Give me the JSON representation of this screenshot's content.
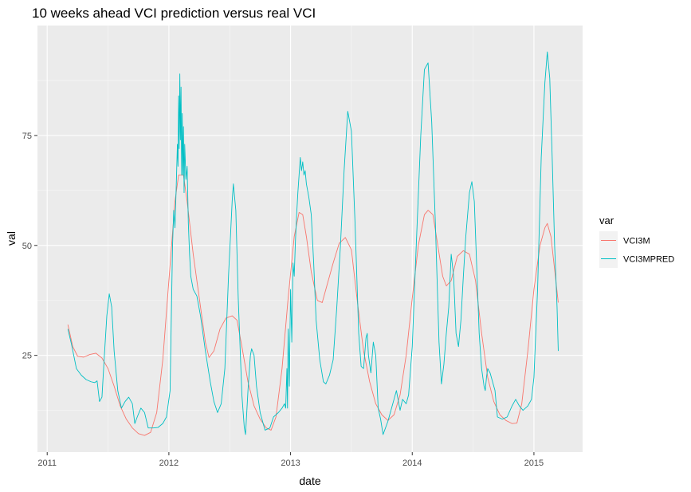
{
  "chart_data": {
    "type": "line",
    "title": "10 weeks ahead VCI prediction versus real VCI",
    "xlabel": "date",
    "ylabel": "val",
    "xlim": [
      2010.92,
      2015.4
    ],
    "ylim": [
      3,
      100
    ],
    "x_ticks": [
      "2011",
      "2012",
      "2013",
      "2014",
      "2015"
    ],
    "y_ticks": [
      25,
      50,
      75
    ],
    "grid": true,
    "legend": {
      "title": "var",
      "position": "right"
    },
    "series": [
      {
        "name": "VCI3M",
        "color": "#F8766D",
        "points": [
          [
            2011.17,
            32
          ],
          [
            2011.21,
            27
          ],
          [
            2011.25,
            24.8
          ],
          [
            2011.3,
            24.6
          ],
          [
            2011.35,
            25.2
          ],
          [
            2011.4,
            25.5
          ],
          [
            2011.45,
            24.4
          ],
          [
            2011.5,
            22
          ],
          [
            2011.55,
            18
          ],
          [
            2011.6,
            13.5
          ],
          [
            2011.65,
            10.5
          ],
          [
            2011.7,
            8.5
          ],
          [
            2011.75,
            7.2
          ],
          [
            2011.8,
            6.8
          ],
          [
            2011.85,
            7.5
          ],
          [
            2011.9,
            12
          ],
          [
            2011.95,
            24
          ],
          [
            2012.0,
            42
          ],
          [
            2012.05,
            60
          ],
          [
            2012.08,
            66
          ],
          [
            2012.12,
            66
          ],
          [
            2012.15,
            60
          ],
          [
            2012.2,
            48
          ],
          [
            2012.25,
            38
          ],
          [
            2012.3,
            28
          ],
          [
            2012.33,
            24.5
          ],
          [
            2012.37,
            26
          ],
          [
            2012.42,
            31
          ],
          [
            2012.47,
            33.5
          ],
          [
            2012.52,
            34
          ],
          [
            2012.56,
            33
          ],
          [
            2012.6,
            27
          ],
          [
            2012.65,
            19
          ],
          [
            2012.7,
            13.5
          ],
          [
            2012.75,
            10.5
          ],
          [
            2012.8,
            8.5
          ],
          [
            2012.84,
            8
          ],
          [
            2012.88,
            11
          ],
          [
            2012.93,
            22
          ],
          [
            2012.98,
            38
          ],
          [
            2013.03,
            52
          ],
          [
            2013.07,
            57.5
          ],
          [
            2013.1,
            57
          ],
          [
            2013.13,
            52
          ],
          [
            2013.17,
            44
          ],
          [
            2013.22,
            37.5
          ],
          [
            2013.26,
            37
          ],
          [
            2013.3,
            41
          ],
          [
            2013.35,
            46
          ],
          [
            2013.4,
            50.5
          ],
          [
            2013.45,
            51.8
          ],
          [
            2013.5,
            49
          ],
          [
            2013.55,
            37
          ],
          [
            2013.6,
            26
          ],
          [
            2013.65,
            19
          ],
          [
            2013.7,
            14
          ],
          [
            2013.75,
            11.5
          ],
          [
            2013.8,
            10.2
          ],
          [
            2013.85,
            11.5
          ],
          [
            2013.9,
            16
          ],
          [
            2013.95,
            25
          ],
          [
            2014.0,
            38
          ],
          [
            2014.05,
            50
          ],
          [
            2014.1,
            57
          ],
          [
            2014.13,
            58
          ],
          [
            2014.17,
            57
          ],
          [
            2014.21,
            50
          ],
          [
            2014.25,
            43
          ],
          [
            2014.28,
            40.8
          ],
          [
            2014.32,
            42
          ],
          [
            2014.37,
            47.5
          ],
          [
            2014.42,
            48.8
          ],
          [
            2014.47,
            48
          ],
          [
            2014.52,
            42
          ],
          [
            2014.57,
            30
          ],
          [
            2014.62,
            20
          ],
          [
            2014.67,
            14.5
          ],
          [
            2014.72,
            11.5
          ],
          [
            2014.77,
            10.2
          ],
          [
            2014.82,
            9.5
          ],
          [
            2014.86,
            9.6
          ],
          [
            2014.9,
            14
          ],
          [
            2014.95,
            26
          ],
          [
            2015.0,
            40
          ],
          [
            2015.05,
            50
          ],
          [
            2015.09,
            54
          ],
          [
            2015.11,
            55
          ],
          [
            2015.14,
            52
          ],
          [
            2015.18,
            42
          ],
          [
            2015.2,
            37
          ]
        ]
      },
      {
        "name": "VCI3MPRED",
        "color": "#00BFC4",
        "points": [
          [
            2011.17,
            31
          ],
          [
            2011.2,
            27.5
          ],
          [
            2011.24,
            22
          ],
          [
            2011.28,
            20.5
          ],
          [
            2011.32,
            19.5
          ],
          [
            2011.36,
            19
          ],
          [
            2011.39,
            18.8
          ],
          [
            2011.41,
            19.2
          ],
          [
            2011.43,
            14.5
          ],
          [
            2011.45,
            15.5
          ],
          [
            2011.47,
            25
          ],
          [
            2011.49,
            34
          ],
          [
            2011.51,
            39
          ],
          [
            2011.53,
            36
          ],
          [
            2011.55,
            26
          ],
          [
            2011.58,
            17
          ],
          [
            2011.61,
            13
          ],
          [
            2011.64,
            14.5
          ],
          [
            2011.67,
            15.5
          ],
          [
            2011.7,
            14
          ],
          [
            2011.72,
            9.5
          ],
          [
            2011.74,
            11
          ],
          [
            2011.77,
            13
          ],
          [
            2011.8,
            12
          ],
          [
            2011.83,
            8.5
          ],
          [
            2011.87,
            8.5
          ],
          [
            2011.91,
            8.6
          ],
          [
            2011.95,
            9.5
          ],
          [
            2011.98,
            11
          ],
          [
            2012.01,
            17
          ],
          [
            2012.03,
            50
          ],
          [
            2012.04,
            58
          ],
          [
            2012.05,
            54
          ],
          [
            2012.06,
            63
          ],
          [
            2012.07,
            73
          ],
          [
            2012.075,
            68
          ],
          [
            2012.08,
            84
          ],
          [
            2012.085,
            72
          ],
          [
            2012.09,
            89
          ],
          [
            2012.095,
            74
          ],
          [
            2012.1,
            86
          ],
          [
            2012.105,
            66
          ],
          [
            2012.11,
            80
          ],
          [
            2012.115,
            66
          ],
          [
            2012.12,
            77
          ],
          [
            2012.125,
            62
          ],
          [
            2012.13,
            73
          ],
          [
            2012.14,
            65
          ],
          [
            2012.15,
            68
          ],
          [
            2012.16,
            55
          ],
          [
            2012.17,
            48
          ],
          [
            2012.18,
            43
          ],
          [
            2012.2,
            40
          ],
          [
            2012.23,
            38.5
          ],
          [
            2012.26,
            34
          ],
          [
            2012.3,
            26
          ],
          [
            2012.34,
            19
          ],
          [
            2012.37,
            14.5
          ],
          [
            2012.4,
            12
          ],
          [
            2012.43,
            14
          ],
          [
            2012.46,
            22
          ],
          [
            2012.49,
            43
          ],
          [
            2012.52,
            60
          ],
          [
            2012.53,
            64
          ],
          [
            2012.55,
            58
          ],
          [
            2012.57,
            38
          ],
          [
            2012.6,
            16
          ],
          [
            2012.62,
            8.5
          ],
          [
            2012.63,
            7
          ],
          [
            2012.65,
            17
          ],
          [
            2012.67,
            25
          ],
          [
            2012.68,
            26.5
          ],
          [
            2012.7,
            25
          ],
          [
            2012.72,
            18
          ],
          [
            2012.75,
            12
          ],
          [
            2012.79,
            8
          ],
          [
            2012.83,
            8.5
          ],
          [
            2012.86,
            11
          ],
          [
            2012.9,
            12
          ],
          [
            2012.93,
            13
          ],
          [
            2012.95,
            14
          ],
          [
            2012.96,
            13
          ],
          [
            2012.97,
            22
          ],
          [
            2012.975,
            13
          ],
          [
            2012.98,
            31
          ],
          [
            2012.99,
            18
          ],
          [
            2013.0,
            40
          ],
          [
            2013.01,
            28
          ],
          [
            2013.02,
            46
          ],
          [
            2013.03,
            43
          ],
          [
            2013.04,
            51
          ],
          [
            2013.05,
            57
          ],
          [
            2013.06,
            62
          ],
          [
            2013.07,
            66
          ],
          [
            2013.08,
            70
          ],
          [
            2013.09,
            67
          ],
          [
            2013.1,
            69
          ],
          [
            2013.11,
            66
          ],
          [
            2013.12,
            67
          ],
          [
            2013.13,
            64
          ],
          [
            2013.15,
            61
          ],
          [
            2013.17,
            57
          ],
          [
            2013.19,
            46
          ],
          [
            2013.21,
            33
          ],
          [
            2013.24,
            24
          ],
          [
            2013.27,
            19
          ],
          [
            2013.29,
            18.5
          ],
          [
            2013.32,
            20.5
          ],
          [
            2013.35,
            24
          ],
          [
            2013.38,
            36
          ],
          [
            2013.41,
            50
          ],
          [
            2013.44,
            67
          ],
          [
            2013.47,
            80.5
          ],
          [
            2013.5,
            76
          ],
          [
            2013.53,
            55
          ],
          [
            2013.56,
            30
          ],
          [
            2013.58,
            22.5
          ],
          [
            2013.6,
            22
          ],
          [
            2013.62,
            29
          ],
          [
            2013.63,
            30
          ],
          [
            2013.64,
            25
          ],
          [
            2013.66,
            21
          ],
          [
            2013.68,
            28
          ],
          [
            2013.7,
            25
          ],
          [
            2013.72,
            13
          ],
          [
            2013.74,
            10.5
          ],
          [
            2013.76,
            7
          ],
          [
            2013.78,
            8.5
          ],
          [
            2013.8,
            10
          ],
          [
            2013.82,
            12
          ],
          [
            2013.85,
            15
          ],
          [
            2013.87,
            17
          ],
          [
            2013.9,
            12.5
          ],
          [
            2013.92,
            15
          ],
          [
            2013.95,
            14
          ],
          [
            2013.97,
            16
          ],
          [
            2014.0,
            27
          ],
          [
            2014.03,
            48
          ],
          [
            2014.07,
            75
          ],
          [
            2014.1,
            90
          ],
          [
            2014.13,
            91.5
          ],
          [
            2014.16,
            78
          ],
          [
            2014.19,
            55
          ],
          [
            2014.22,
            28
          ],
          [
            2014.24,
            18.5
          ],
          [
            2014.26,
            23
          ],
          [
            2014.28,
            30
          ],
          [
            2014.3,
            36
          ],
          [
            2014.32,
            48
          ],
          [
            2014.34,
            43
          ],
          [
            2014.36,
            30
          ],
          [
            2014.38,
            27
          ],
          [
            2014.4,
            33
          ],
          [
            2014.42,
            43
          ],
          [
            2014.44,
            52
          ],
          [
            2014.47,
            62
          ],
          [
            2014.49,
            64.5
          ],
          [
            2014.51,
            60
          ],
          [
            2014.53,
            45
          ],
          [
            2014.55,
            30
          ],
          [
            2014.57,
            22
          ],
          [
            2014.59,
            18
          ],
          [
            2014.6,
            17
          ],
          [
            2014.61,
            20
          ],
          [
            2014.62,
            22
          ],
          [
            2014.64,
            21
          ],
          [
            2014.66,
            19
          ],
          [
            2014.68,
            17
          ],
          [
            2014.7,
            11
          ],
          [
            2014.74,
            10.5
          ],
          [
            2014.78,
            11
          ],
          [
            2014.82,
            13.5
          ],
          [
            2014.85,
            15
          ],
          [
            2014.88,
            13.5
          ],
          [
            2014.91,
            12.5
          ],
          [
            2014.95,
            13.5
          ],
          [
            2014.98,
            15
          ],
          [
            2015.0,
            20
          ],
          [
            2015.03,
            40
          ],
          [
            2015.06,
            70
          ],
          [
            2015.09,
            87
          ],
          [
            2015.11,
            94
          ],
          [
            2015.13,
            88
          ],
          [
            2015.15,
            70
          ],
          [
            2015.17,
            50
          ],
          [
            2015.19,
            36
          ],
          [
            2015.2,
            26
          ]
        ]
      }
    ]
  }
}
